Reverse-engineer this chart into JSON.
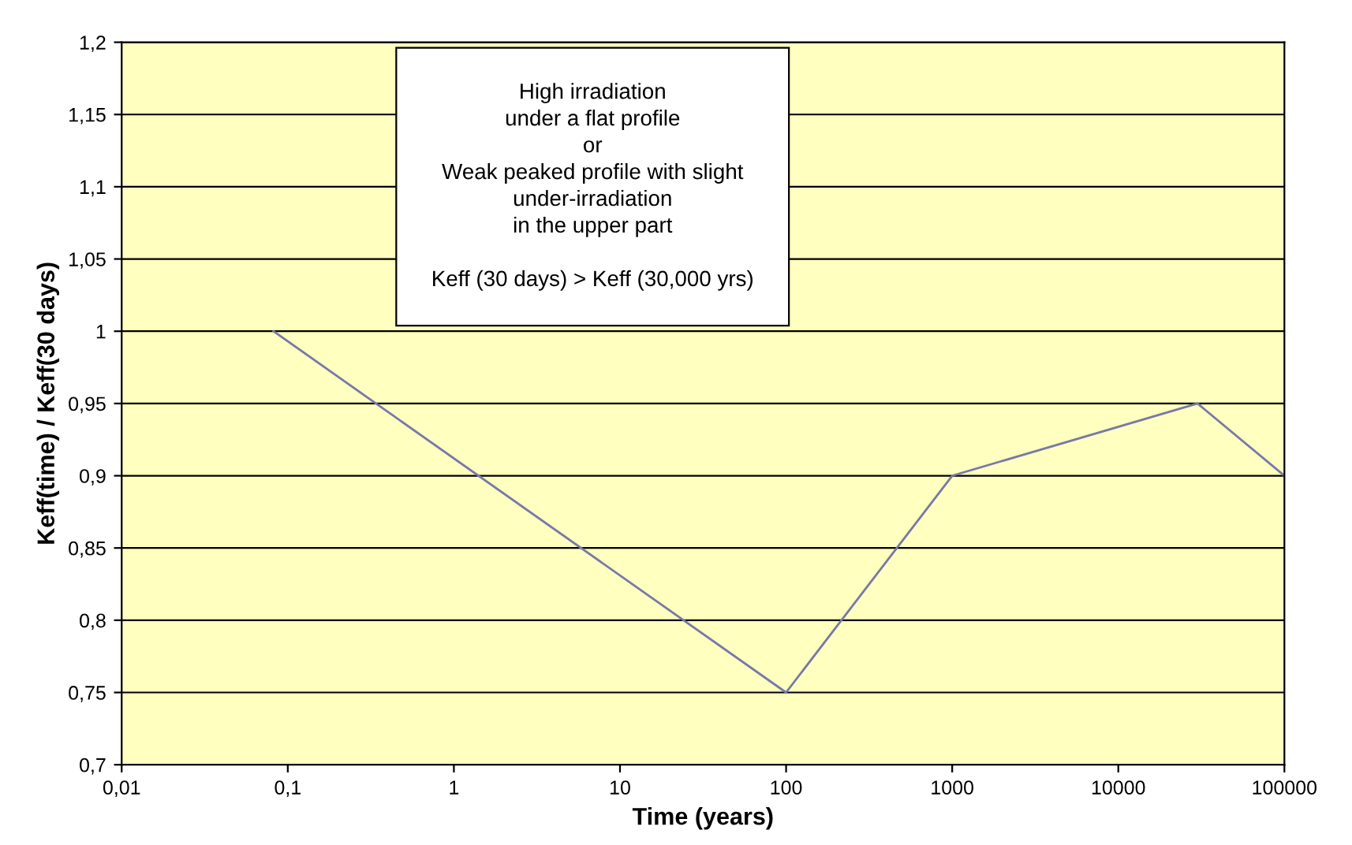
{
  "chart_data": {
    "type": "line",
    "xlabel": "Time (years)",
    "ylabel": "Keff(time) / Keff(30 days)",
    "x": [
      0.082,
      100,
      1000,
      30000,
      100000
    ],
    "series": [
      {
        "color": "#7878a8",
        "values": [
          1.0,
          0.75,
          0.9,
          0.95,
          0.9
        ]
      }
    ],
    "log": "x",
    "xlim": [
      0.01,
      100000
    ],
    "xticks": [
      {
        "value": 0.01,
        "label": "0,01"
      },
      {
        "value": 0.1,
        "label": "0,1"
      },
      1,
      10,
      100,
      1000,
      10000,
      100000
    ],
    "ylim": [
      0.7,
      1.2
    ],
    "yticks": [
      {
        "value": 0.7,
        "label": "0,7"
      },
      {
        "value": 0.75,
        "label": "0,75"
      },
      {
        "value": 0.8,
        "label": "0,8"
      },
      {
        "value": 0.85,
        "label": "0,85"
      },
      {
        "value": 0.9,
        "label": "0,9"
      },
      {
        "value": 0.95,
        "label": "0,95"
      },
      1,
      {
        "value": 1.05,
        "label": "1,05"
      },
      {
        "value": 1.1,
        "label": "1,1"
      },
      {
        "value": 1.15,
        "label": "1,15"
      },
      {
        "value": 1.2,
        "label": "1,2"
      }
    ],
    "grid": "y",
    "marker": "none",
    "line_style": "solid",
    "legend": false,
    "annotations": [
      "High irradiation\nunder a flat profile\nor\nWeak peaked profile with slight\nunder-irradiation\nin the upper part\n\nKeff (30 days) > Keff (30,000 yrs)"
    ]
  }
}
